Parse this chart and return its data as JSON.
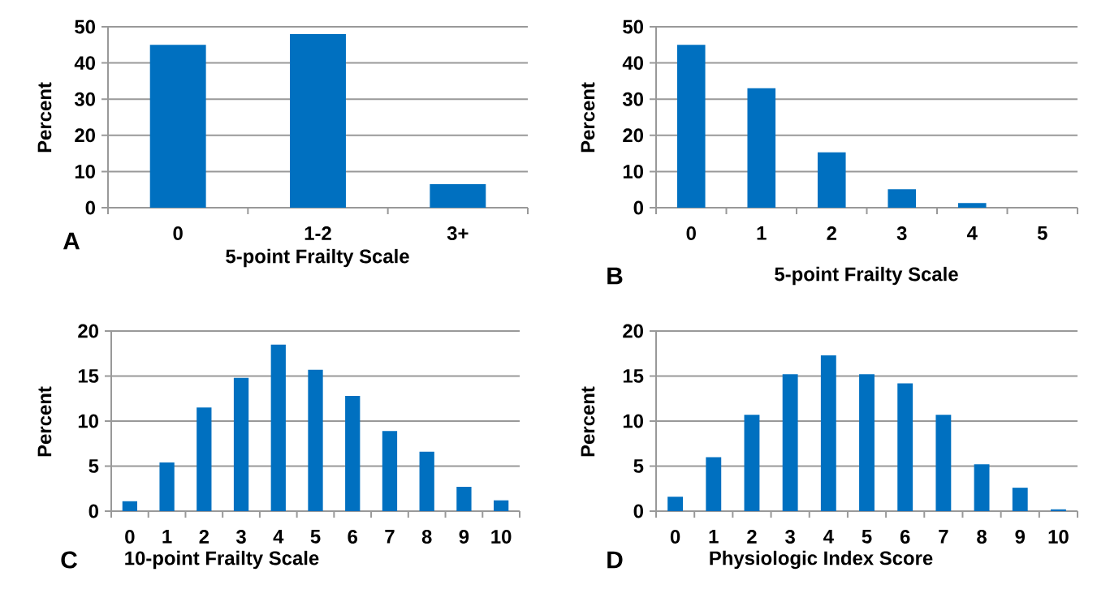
{
  "chart_data": [
    {
      "type": "bar",
      "categories": [
        "0",
        "1-2",
        "3+"
      ],
      "values": [
        45,
        48,
        6.5
      ],
      "color": "#0070c0",
      "ylim": [
        0,
        50
      ],
      "yticks": [
        0,
        10,
        20,
        30,
        40,
        50
      ],
      "grid": "y",
      "xlabel": "5-point Frailty Scale",
      "ylabel": "Percent",
      "annotations": [
        "A"
      ]
    },
    {
      "type": "bar",
      "categories": [
        "0",
        "1",
        "2",
        "3",
        "4",
        "5"
      ],
      "values": [
        45,
        33,
        15.3,
        5.1,
        1.3,
        0
      ],
      "color": "#0070c0",
      "ylim": [
        0,
        50
      ],
      "yticks": [
        0,
        10,
        20,
        30,
        40,
        50
      ],
      "grid": "y",
      "xlabel": "5-point Frailty Scale",
      "ylabel": "Percent",
      "annotations": [
        "B"
      ]
    },
    {
      "type": "bar",
      "categories": [
        "0",
        "1",
        "2",
        "3",
        "4",
        "5",
        "6",
        "7",
        "8",
        "9",
        "10"
      ],
      "values": [
        1.1,
        5.4,
        11.5,
        14.8,
        18.5,
        15.7,
        12.8,
        8.9,
        6.6,
        2.7,
        1.2
      ],
      "color": "#0070c0",
      "ylim": [
        0,
        20
      ],
      "yticks": [
        0,
        5,
        10,
        15,
        20
      ],
      "grid": "y",
      "xlabel": "10-point Frailty Scale",
      "ylabel": "Percent",
      "annotations": [
        "C"
      ]
    },
    {
      "type": "bar",
      "categories": [
        "0",
        "1",
        "2",
        "3",
        "4",
        "5",
        "6",
        "7",
        "8",
        "9",
        "10"
      ],
      "values": [
        1.6,
        6.0,
        10.7,
        15.2,
        17.3,
        15.2,
        14.2,
        10.7,
        5.2,
        2.6,
        0.2
      ],
      "color": "#0070c0",
      "ylim": [
        0,
        20
      ],
      "yticks": [
        0,
        5,
        10,
        15,
        20
      ],
      "grid": "y",
      "xlabel": "Physiologic Index Score",
      "ylabel": "Percent",
      "annotations": [
        "D"
      ]
    }
  ]
}
